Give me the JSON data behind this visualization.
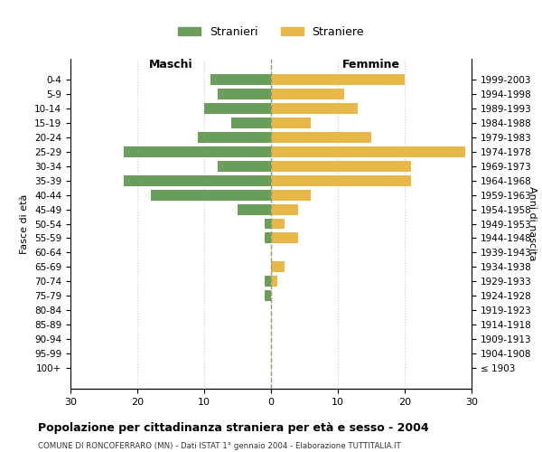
{
  "age_groups": [
    "100+",
    "95-99",
    "90-94",
    "85-89",
    "80-84",
    "75-79",
    "70-74",
    "65-69",
    "60-64",
    "55-59",
    "50-54",
    "45-49",
    "40-44",
    "35-39",
    "30-34",
    "25-29",
    "20-24",
    "15-19",
    "10-14",
    "5-9",
    "0-4"
  ],
  "birth_years": [
    "≤ 1903",
    "1904-1908",
    "1909-1913",
    "1914-1918",
    "1919-1923",
    "1924-1928",
    "1929-1933",
    "1934-1938",
    "1939-1943",
    "1944-1948",
    "1949-1953",
    "1954-1958",
    "1959-1963",
    "1964-1968",
    "1969-1973",
    "1974-1978",
    "1979-1983",
    "1984-1988",
    "1989-1993",
    "1994-1998",
    "1999-2003"
  ],
  "maschi": [
    0,
    0,
    0,
    0,
    0,
    1,
    1,
    0,
    0,
    1,
    1,
    5,
    18,
    22,
    8,
    22,
    11,
    6,
    10,
    8,
    9
  ],
  "femmine": [
    0,
    0,
    0,
    0,
    0,
    0,
    1,
    2,
    0,
    4,
    2,
    4,
    6,
    21,
    21,
    29,
    15,
    6,
    13,
    11,
    20
  ],
  "color_maschi": "#6a9e5a",
  "color_femmine": "#e8b84b",
  "xlim": 30,
  "title": "Popolazione per cittadinanza straniera per età e sesso - 2004",
  "subtitle": "COMUNE DI RONCOFERRARO (MN) - Dati ISTAT 1° gennaio 2004 - Elaborazione TUTTITALIA.IT",
  "ylabel_left": "Fasce di età",
  "ylabel_right": "Anni di nascita",
  "label_maschi": "Stranieri",
  "label_femmine": "Straniere",
  "header_maschi": "Maschi",
  "header_femmine": "Femmine",
  "background_color": "#ffffff",
  "grid_color": "#cccccc"
}
